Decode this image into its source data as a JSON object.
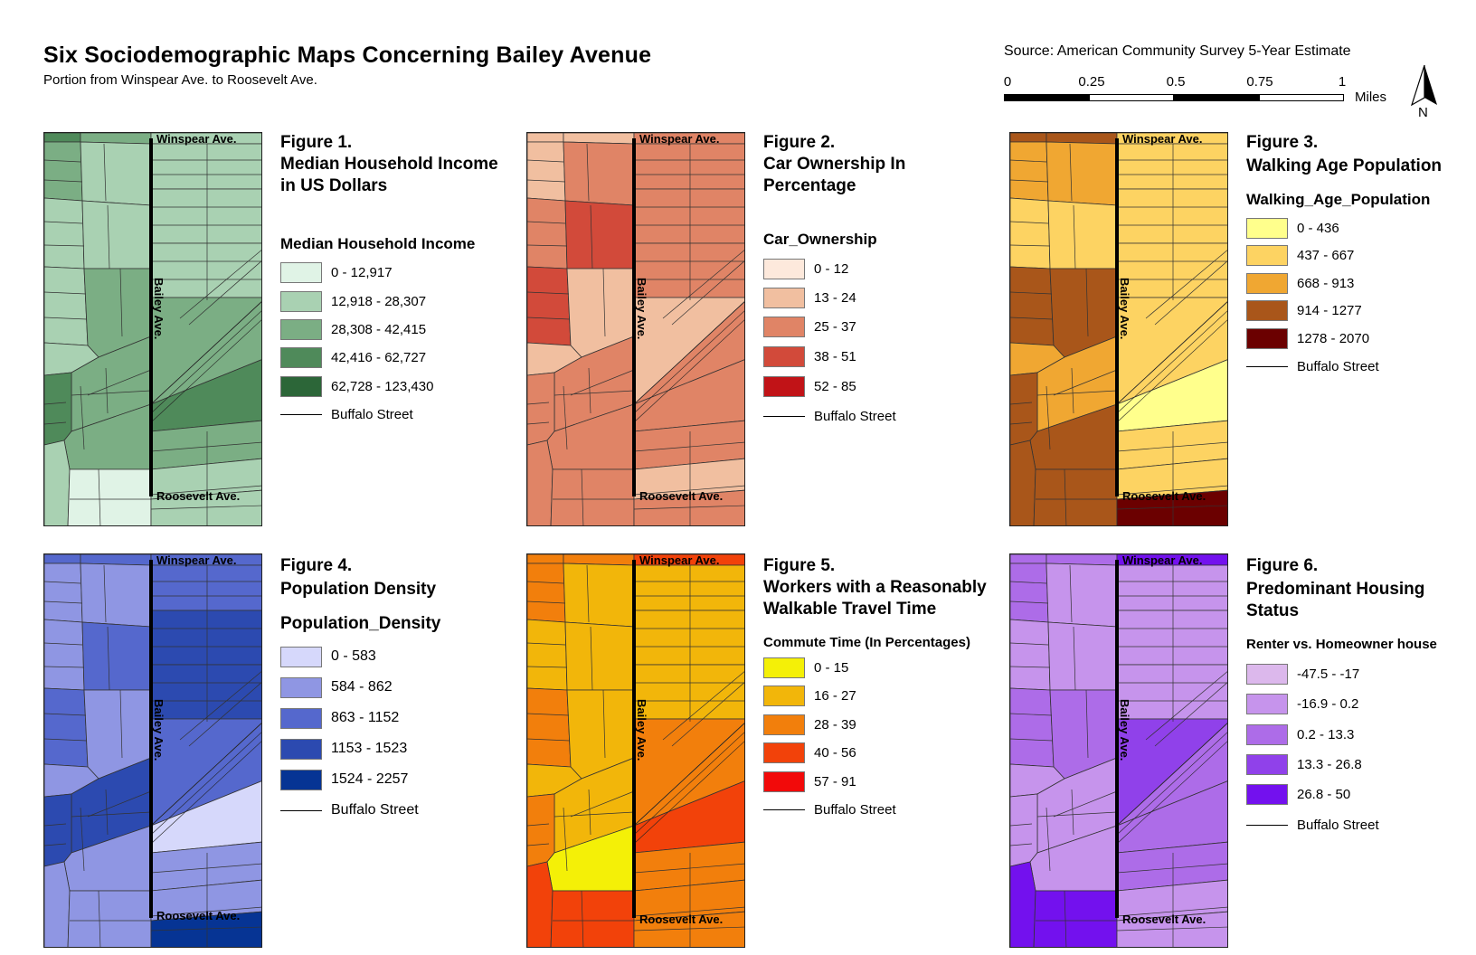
{
  "header": {
    "title": "Six Sociodemographic Maps Concerning Bailey Avenue",
    "subtitle": "Portion from Winspear Ave. to Roosevelt Ave.",
    "source": "Source: American Community Survey 5-Year Estimate"
  },
  "scale": {
    "labels": [
      "0",
      "0.25",
      "0.5",
      "0.75",
      "1"
    ],
    "units": "Miles"
  },
  "north_label": "N",
  "street_labels": {
    "north": "Winspear Ave.",
    "south": "Roosevelt Ave.",
    "main": "Bailey Ave."
  },
  "figures": [
    {
      "number": "Figure 1.",
      "title_lines": [
        "Median Household Income",
        "in US Dollars"
      ],
      "legend_title": "Median Household Income",
      "classes": [
        {
          "label": "0 - 12,917",
          "color": "#e0f3e6"
        },
        {
          "label": "12,918 - 28,307",
          "color": "#a9d1b2"
        },
        {
          "label": "28,308 - 42,415",
          "color": "#7bae84"
        },
        {
          "label": "42,416 - 62,727",
          "color": "#4f8a5a"
        },
        {
          "label": "62,728 - 123,430",
          "color": "#2c6638"
        }
      ],
      "street_label": "Buffalo Street"
    },
    {
      "number": "Figure 2.",
      "title_lines": [
        "Car Ownership In",
        "Percentage"
      ],
      "legend_title": "Car_Ownership",
      "classes": [
        {
          "label": "0 - 12",
          "color": "#fde9dc"
        },
        {
          "label": "13 - 24",
          "color": "#f1bfa0"
        },
        {
          "label": "25 - 37",
          "color": "#e08466"
        },
        {
          "label": "38 - 51",
          "color": "#d24a3a"
        },
        {
          "label": "52 - 85",
          "color": "#c11317"
        }
      ],
      "street_label": "Buffalo Street"
    },
    {
      "number": "Figure 3.",
      "title_lines": [
        "Walking Age Population"
      ],
      "legend_title": "Walking_Age_Population",
      "classes": [
        {
          "label": "0 - 436",
          "color": "#ffff8c"
        },
        {
          "label": "437 - 667",
          "color": "#fdd362"
        },
        {
          "label": "668 - 913",
          "color": "#f0a732"
        },
        {
          "label": "914 - 1277",
          "color": "#a9561a"
        },
        {
          "label": "1278 - 2070",
          "color": "#6b0000"
        }
      ],
      "street_label": "Buffalo Street"
    },
    {
      "number": "Figure 4.",
      "title_lines": [
        "Population Density"
      ],
      "legend_title": "Population_Density",
      "classes": [
        {
          "label": "0 - 583",
          "color": "#d6d8fb"
        },
        {
          "label": "584 - 862",
          "color": "#8f96e3"
        },
        {
          "label": "863 - 1152",
          "color": "#5568cd"
        },
        {
          "label": "1153 - 1523",
          "color": "#2c4ab0"
        },
        {
          "label": "1524 - 2257",
          "color": "#063494"
        }
      ],
      "street_label": "Buffalo Street"
    },
    {
      "number": "Figure 5.",
      "title_lines": [
        "Workers with a Reasonably",
        "Walkable Travel Time"
      ],
      "legend_title": "Commute Time (In Percentages)",
      "classes": [
        {
          "label": "0 - 15",
          "color": "#f4f007"
        },
        {
          "label": "16 - 27",
          "color": "#f2b60a"
        },
        {
          "label": "28 - 39",
          "color": "#f27f0c"
        },
        {
          "label": "40 - 56",
          "color": "#f2420a"
        },
        {
          "label": "57 - 91",
          "color": "#f20a0a"
        }
      ],
      "street_label": "Buffalo Street"
    },
    {
      "number": "Figure 6.",
      "title_lines": [
        "Predominant Housing",
        "Status"
      ],
      "legend_title": "Renter vs. Homeowner house",
      "classes": [
        {
          "label": "-47.5 - -17",
          "color": "#dcb8ec"
        },
        {
          "label": "-16.9 - 0.2",
          "color": "#c694ec"
        },
        {
          "label": "0.2 - 13.3",
          "color": "#ad6ce8"
        },
        {
          "label": "13.3 - 26.8",
          "color": "#9041ea"
        },
        {
          "label": "26.8 - 50",
          "color": "#7311ee"
        }
      ],
      "street_label": "Buffalo Street"
    }
  ],
  "map_fills": [
    [
      3,
      2,
      2,
      1,
      1,
      1,
      1,
      2,
      1,
      2,
      3,
      2,
      1,
      0,
      1,
      1,
      1,
      1,
      2,
      2,
      3,
      2,
      1,
      1
    ],
    [
      1,
      1,
      1,
      2,
      2,
      3,
      3,
      1,
      1,
      2,
      2,
      2,
      2,
      2,
      2,
      2,
      2,
      2,
      1,
      2,
      2,
      2,
      1,
      2
    ],
    [
      3,
      3,
      2,
      2,
      1,
      1,
      3,
      3,
      2,
      2,
      3,
      3,
      3,
      3,
      1,
      1,
      1,
      1,
      1,
      1,
      0,
      1,
      1,
      4
    ],
    [
      2,
      2,
      1,
      1,
      1,
      2,
      2,
      1,
      1,
      3,
      3,
      1,
      1,
      1,
      2,
      2,
      3,
      3,
      2,
      2,
      0,
      1,
      1,
      4
    ],
    [
      2,
      2,
      2,
      1,
      1,
      1,
      2,
      1,
      1,
      1,
      2,
      0,
      3,
      3,
      3,
      1,
      1,
      1,
      2,
      2,
      3,
      2,
      2,
      2
    ],
    [
      2,
      2,
      2,
      1,
      1,
      1,
      2,
      2,
      1,
      1,
      1,
      1,
      4,
      4,
      4,
      1,
      1,
      1,
      3,
      2,
      2,
      2,
      1,
      1
    ]
  ]
}
